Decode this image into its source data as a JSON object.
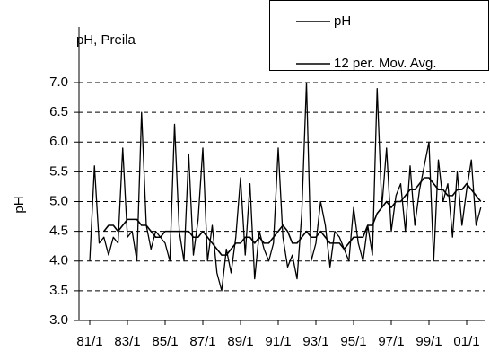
{
  "chart_data": {
    "type": "line",
    "title": "pH, Preila",
    "y_label": "pH",
    "categories": [
      "81/1",
      null,
      null,
      null,
      null,
      null,
      null,
      null,
      "83/1",
      null,
      null,
      null,
      null,
      null,
      null,
      null,
      "85/1",
      null,
      null,
      null,
      null,
      null,
      null,
      null,
      "87/1",
      null,
      null,
      null,
      null,
      null,
      null,
      null,
      "89/1",
      null,
      null,
      null,
      null,
      null,
      null,
      null,
      "91/1",
      null,
      null,
      null,
      null,
      null,
      null,
      null,
      "93/1",
      null,
      null,
      null,
      null,
      null,
      null,
      null,
      "95/1",
      null,
      null,
      null,
      null,
      null,
      null,
      null,
      "97/1",
      null,
      null,
      null,
      null,
      null,
      null,
      null,
      "99/1",
      null,
      null,
      null,
      null,
      null,
      null,
      null,
      "01/1",
      null,
      null,
      null
    ],
    "series": [
      {
        "name": "pH",
        "color": "#000000",
        "values": [
          4.0,
          5.6,
          4.3,
          4.4,
          4.1,
          4.4,
          4.3,
          5.9,
          4.4,
          4.5,
          4.0,
          6.5,
          4.6,
          4.2,
          4.5,
          4.4,
          4.3,
          4.0,
          6.3,
          4.5,
          4.0,
          5.8,
          4.1,
          4.7,
          5.9,
          4.0,
          4.6,
          3.8,
          3.5,
          4.2,
          3.8,
          4.4,
          5.4,
          4.1,
          5.3,
          3.7,
          4.5,
          4.2,
          4.0,
          4.3,
          5.9,
          4.4,
          3.9,
          4.1,
          3.7,
          4.8,
          7.0,
          4.0,
          4.3,
          5.0,
          4.6,
          3.9,
          4.5,
          4.4,
          4.2,
          4.0,
          4.9,
          4.3,
          4.0,
          4.6,
          4.1,
          6.9,
          4.9,
          5.9,
          4.5,
          5.1,
          5.3,
          4.5,
          5.6,
          4.6,
          5.2,
          5.6,
          6.0,
          4.0,
          5.7,
          5.0,
          5.3,
          4.4,
          5.5,
          4.6,
          5.2,
          5.7,
          4.6,
          4.9
        ]
      },
      {
        "name": "12 per. Mov. Avg.",
        "color": "#000000",
        "values": [
          null,
          null,
          null,
          4.5,
          4.6,
          4.6,
          4.5,
          4.6,
          4.7,
          4.7,
          4.7,
          4.6,
          4.6,
          4.5,
          4.4,
          4.4,
          4.5,
          4.5,
          4.5,
          4.5,
          4.5,
          4.5,
          4.4,
          4.4,
          4.5,
          4.4,
          4.3,
          4.2,
          4.1,
          4.1,
          4.2,
          4.3,
          4.3,
          4.4,
          4.4,
          4.3,
          4.4,
          4.3,
          4.3,
          4.4,
          4.5,
          4.6,
          4.5,
          4.3,
          4.3,
          4.4,
          4.5,
          4.4,
          4.4,
          4.5,
          4.4,
          4.3,
          4.3,
          4.3,
          4.2,
          4.3,
          4.4,
          4.4,
          4.4,
          4.6,
          4.6,
          4.8,
          4.9,
          5.0,
          4.9,
          5.0,
          5.0,
          5.1,
          5.2,
          5.2,
          5.3,
          5.4,
          5.4,
          5.3,
          5.2,
          5.2,
          5.1,
          5.1,
          5.2,
          5.2,
          5.3,
          5.2,
          5.1,
          5.0
        ]
      }
    ],
    "ylim": [
      3,
      7
    ],
    "yticks": [
      {
        "value": 3,
        "label": "3.0"
      },
      {
        "value": 3.5,
        "label": "3.5"
      },
      {
        "value": 4,
        "label": "4.0"
      },
      {
        "value": 4.5,
        "label": "4.5"
      },
      {
        "value": 5,
        "label": "5.0"
      },
      {
        "value": 5.5,
        "label": "5.5"
      },
      {
        "value": 6,
        "label": "6.0"
      },
      {
        "value": 6.5,
        "label": "6.5"
      },
      {
        "value": 7,
        "label": "7.0"
      }
    ],
    "grid": true,
    "legend": "top-right"
  }
}
